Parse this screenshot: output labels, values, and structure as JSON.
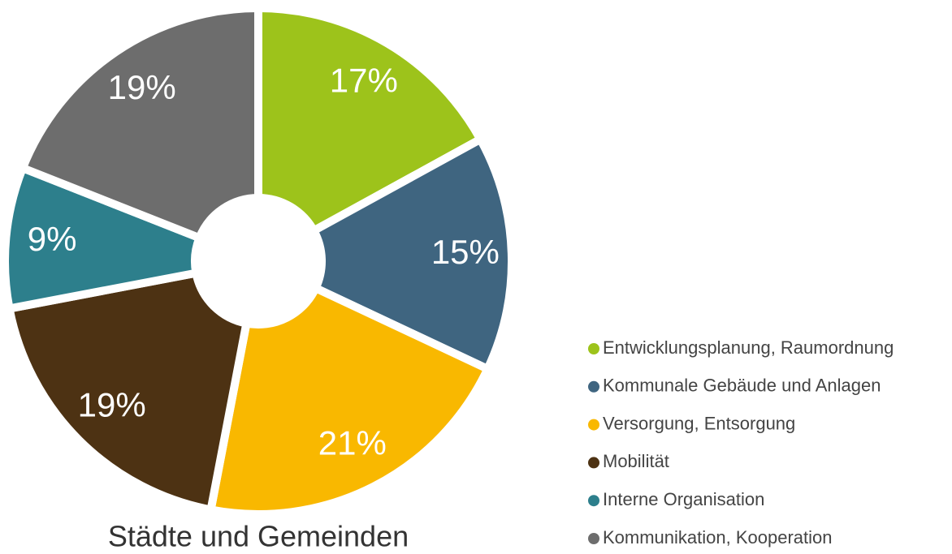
{
  "chart_data": {
    "type": "donut",
    "title": "Städte und Gemeinden",
    "categories": [
      "Entwicklungsplanung, Raumordnung",
      "Kommunale Gebäude und Anlagen",
      "Versorgung, Entsorgung",
      "Mobilität",
      "Interne Organisation",
      "Kommunikation, Kooperation"
    ],
    "values": [
      17,
      15,
      21,
      19,
      9,
      19
    ],
    "value_labels": [
      "17%",
      "15%",
      "21%",
      "19%",
      "9%",
      "19%"
    ],
    "colors": [
      "#9dc31b",
      "#3f6580",
      "#f9b800",
      "#4d3213",
      "#2d7f8c",
      "#6d6d6d"
    ],
    "legend": "bottom-right"
  }
}
